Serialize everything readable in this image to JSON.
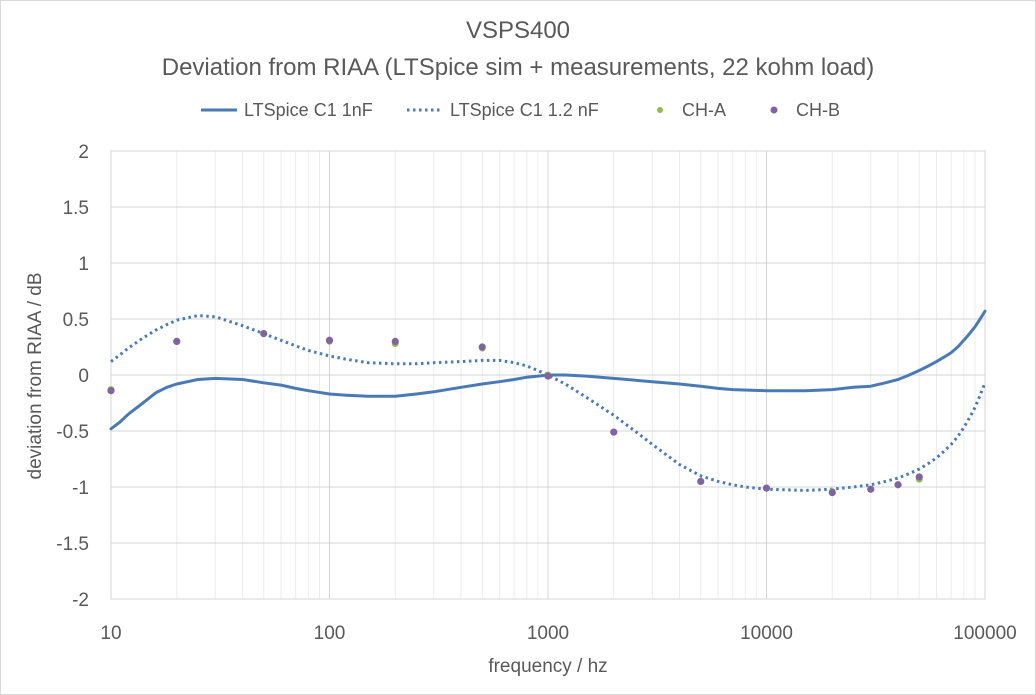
{
  "chart_data": {
    "type": "scatter",
    "title": "VSPS400",
    "subtitle": "Deviation from RIAA (LTSpice  sim + measurements, 22 kohm load)",
    "xlabel": "frequency / hz",
    "ylabel": "deviation from RIAA / dB",
    "x_scale": "log",
    "xlim": [
      10,
      100000
    ],
    "ylim": [
      -2,
      2
    ],
    "x_ticks": [
      10,
      100,
      1000,
      10000,
      100000
    ],
    "x_tick_labels": [
      "10",
      "100",
      "1000",
      "10000",
      "100000"
    ],
    "y_ticks": [
      -2,
      -1.5,
      -1,
      -0.5,
      0,
      0.5,
      1,
      1.5,
      2
    ],
    "y_tick_labels": [
      "-2",
      "-1.5",
      "-1",
      "-0.5",
      "0",
      "0.5",
      "1",
      "1.5",
      "2"
    ],
    "grid": "major and minor",
    "legend_position": "top",
    "series": [
      {
        "name": "LTSpice C1 1nF",
        "style": "solid-line",
        "color": "#4a7ab5",
        "points": [
          [
            10,
            -0.48
          ],
          [
            11,
            -0.42
          ],
          [
            12,
            -0.35
          ],
          [
            14,
            -0.25
          ],
          [
            16,
            -0.16
          ],
          [
            18,
            -0.11
          ],
          [
            20,
            -0.08
          ],
          [
            25,
            -0.04
          ],
          [
            30,
            -0.03
          ],
          [
            40,
            -0.04
          ],
          [
            50,
            -0.07
          ],
          [
            60,
            -0.09
          ],
          [
            70,
            -0.12
          ],
          [
            80,
            -0.14
          ],
          [
            100,
            -0.17
          ],
          [
            120,
            -0.18
          ],
          [
            150,
            -0.19
          ],
          [
            200,
            -0.19
          ],
          [
            250,
            -0.17
          ],
          [
            300,
            -0.15
          ],
          [
            400,
            -0.11
          ],
          [
            500,
            -0.08
          ],
          [
            600,
            -0.06
          ],
          [
            700,
            -0.04
          ],
          [
            800,
            -0.02
          ],
          [
            900,
            -0.01
          ],
          [
            1000,
            0.0
          ],
          [
            1200,
            0.0
          ],
          [
            1500,
            -0.01
          ],
          [
            2000,
            -0.03
          ],
          [
            3000,
            -0.06
          ],
          [
            4000,
            -0.08
          ],
          [
            5000,
            -0.1
          ],
          [
            6000,
            -0.12
          ],
          [
            7000,
            -0.13
          ],
          [
            10000,
            -0.14
          ],
          [
            15000,
            -0.14
          ],
          [
            20000,
            -0.13
          ],
          [
            25000,
            -0.11
          ],
          [
            30000,
            -0.1
          ],
          [
            35000,
            -0.07
          ],
          [
            40000,
            -0.04
          ],
          [
            45000,
            0.0
          ],
          [
            50000,
            0.04
          ],
          [
            55000,
            0.08
          ],
          [
            60000,
            0.12
          ],
          [
            65000,
            0.16
          ],
          [
            70000,
            0.2
          ],
          [
            75000,
            0.25
          ],
          [
            80000,
            0.31
          ],
          [
            85000,
            0.37
          ],
          [
            90000,
            0.43
          ],
          [
            95000,
            0.5
          ],
          [
            100000,
            0.57
          ]
        ]
      },
      {
        "name": "LTSpice C1 1.2 nF",
        "style": "dotted-line",
        "color": "#4a7ab5",
        "points": [
          [
            10,
            0.12
          ],
          [
            11,
            0.18
          ],
          [
            12,
            0.24
          ],
          [
            14,
            0.33
          ],
          [
            16,
            0.4
          ],
          [
            18,
            0.45
          ],
          [
            20,
            0.49
          ],
          [
            25,
            0.53
          ],
          [
            30,
            0.52
          ],
          [
            40,
            0.44
          ],
          [
            50,
            0.37
          ],
          [
            60,
            0.31
          ],
          [
            70,
            0.26
          ],
          [
            80,
            0.22
          ],
          [
            100,
            0.17
          ],
          [
            120,
            0.14
          ],
          [
            150,
            0.11
          ],
          [
            200,
            0.1
          ],
          [
            250,
            0.1
          ],
          [
            300,
            0.11
          ],
          [
            400,
            0.12
          ],
          [
            500,
            0.13
          ],
          [
            600,
            0.13
          ],
          [
            700,
            0.11
          ],
          [
            800,
            0.08
          ],
          [
            900,
            0.04
          ],
          [
            1000,
            0.0
          ],
          [
            1200,
            -0.08
          ],
          [
            1500,
            -0.2
          ],
          [
            2000,
            -0.36
          ],
          [
            2500,
            -0.5
          ],
          [
            3000,
            -0.62
          ],
          [
            4000,
            -0.8
          ],
          [
            5000,
            -0.9
          ],
          [
            6000,
            -0.95
          ],
          [
            7000,
            -0.98
          ],
          [
            8000,
            -1.0
          ],
          [
            10000,
            -1.02
          ],
          [
            15000,
            -1.03
          ],
          [
            20000,
            -1.02
          ],
          [
            25000,
            -1.0
          ],
          [
            30000,
            -0.98
          ],
          [
            35000,
            -0.95
          ],
          [
            40000,
            -0.92
          ],
          [
            45000,
            -0.88
          ],
          [
            50000,
            -0.84
          ],
          [
            55000,
            -0.79
          ],
          [
            60000,
            -0.74
          ],
          [
            65000,
            -0.68
          ],
          [
            70000,
            -0.62
          ],
          [
            75000,
            -0.55
          ],
          [
            80000,
            -0.47
          ],
          [
            85000,
            -0.38
          ],
          [
            90000,
            -0.29
          ],
          [
            95000,
            -0.18
          ],
          [
            100000,
            -0.07
          ]
        ]
      },
      {
        "name": "CH-A",
        "style": "markers",
        "color": "#8fbe45",
        "points": [
          [
            10,
            -0.13
          ],
          [
            20,
            0.3
          ],
          [
            50,
            0.37
          ],
          [
            100,
            0.3
          ],
          [
            200,
            0.28
          ],
          [
            500,
            0.24
          ],
          [
            1000,
            0.0
          ],
          [
            2000,
            -0.51
          ],
          [
            5000,
            -0.95
          ],
          [
            10000,
            -1.01
          ],
          [
            20000,
            -1.04
          ],
          [
            30000,
            -1.02
          ],
          [
            40000,
            -0.98
          ],
          [
            50000,
            -0.93
          ]
        ]
      },
      {
        "name": "CH-B",
        "style": "markers",
        "color": "#8064a2",
        "points": [
          [
            10,
            -0.14
          ],
          [
            20,
            0.3
          ],
          [
            50,
            0.37
          ],
          [
            100,
            0.31
          ],
          [
            200,
            0.3
          ],
          [
            500,
            0.25
          ],
          [
            1000,
            -0.01
          ],
          [
            2000,
            -0.51
          ],
          [
            5000,
            -0.95
          ],
          [
            10000,
            -1.01
          ],
          [
            20000,
            -1.05
          ],
          [
            30000,
            -1.02
          ],
          [
            40000,
            -0.98
          ],
          [
            50000,
            -0.91
          ]
        ]
      }
    ]
  }
}
